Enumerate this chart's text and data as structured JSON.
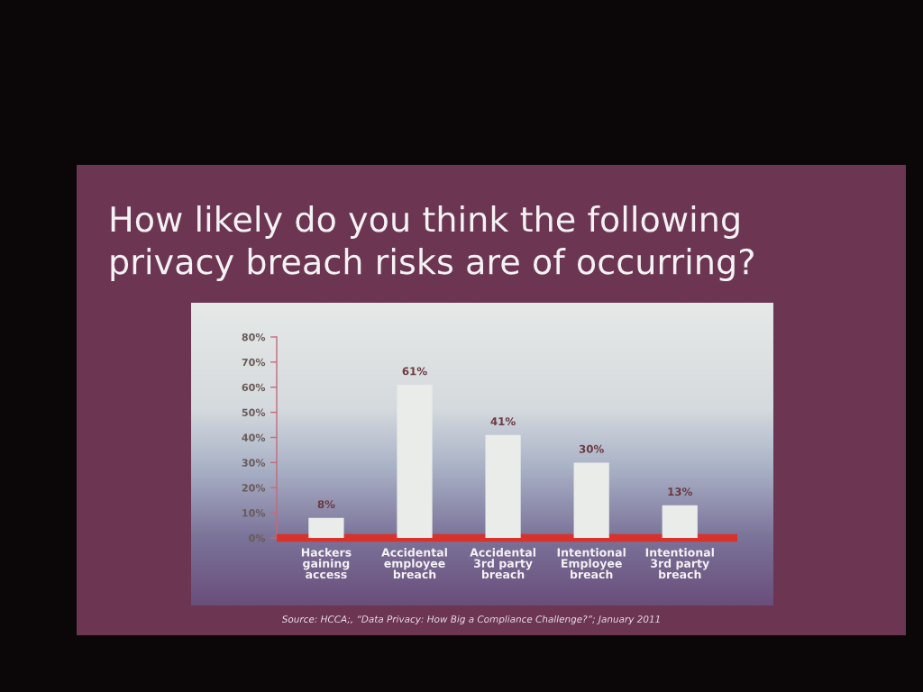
{
  "chart_data": {
    "type": "bar",
    "title": "How likely do you think the following\nprivacy breach risks are of occurring?",
    "categories": [
      "Hackers\ngaining\naccess",
      "Accidental\nemployee\nbreach",
      "Accidental\n3rd party\nbreach",
      "Intentional\nEmployee\nbreach",
      "Intentional\n3rd party\nbreach"
    ],
    "values": [
      8,
      61,
      41,
      30,
      13
    ],
    "color": "#e9ece9",
    "value_labels": [
      "8%",
      "61%",
      "41%",
      "30%",
      "13%"
    ],
    "ylim": [
      0,
      80
    ],
    "yticks": [
      {
        "value": 0,
        "label": "0%"
      },
      {
        "value": 10,
        "label": "10%"
      },
      {
        "value": 20,
        "label": "20%"
      },
      {
        "value": 30,
        "label": "30%"
      },
      {
        "value": 40,
        "label": "40%"
      },
      {
        "value": 50,
        "label": "50%"
      },
      {
        "value": 60,
        "label": "60%"
      },
      {
        "value": 70,
        "label": "70%"
      },
      {
        "value": 80,
        "label": "80%"
      }
    ],
    "annotations": [
      "Source: HCCA;, “Data Privacy: How Big a Compliance Challenge?”; January 2011"
    ]
  }
}
